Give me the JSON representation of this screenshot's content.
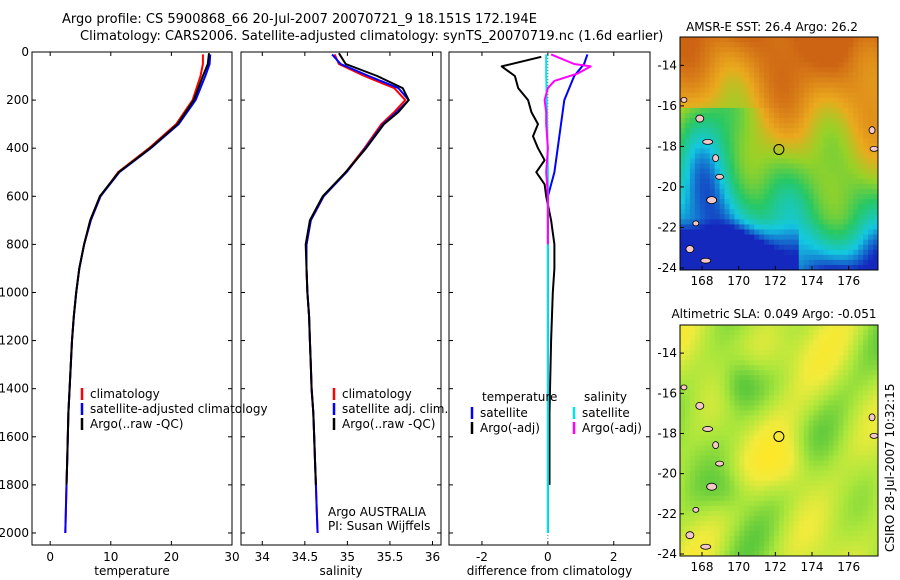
{
  "header": {
    "line1": "Argo profile: CS 5900868_66 20-Jul-2007 20070721_9 18.151S 172.194E",
    "line2": "Climatology: CARS2006. Satellite-adjusted climatology: synTS_20070719.nc (1.6d earlier)"
  },
  "side_label": "CSIRO 28-Jul-2007 10:32:15",
  "colors": {
    "climatology": "#ff0000",
    "satellite": "#0000ff",
    "argo": "#000000",
    "satellite_salinity": "#00e5e5",
    "argo_adj_salinity": "#ff00ff"
  },
  "chart_data": [
    {
      "type": "line",
      "xlabel": "temperature",
      "ylabel": "",
      "xlim": [
        -3,
        30
      ],
      "ylim": [
        2050,
        0
      ],
      "x_ticks": [
        "0",
        "10",
        "20",
        "30"
      ],
      "x_tick_values": [
        0,
        10,
        20,
        30
      ],
      "y_ticks": [
        "0",
        "200",
        "400",
        "600",
        "800",
        "1000",
        "1200",
        "1400",
        "1600",
        "1800",
        "2000"
      ],
      "y_tick_values": [
        0,
        200,
        400,
        600,
        800,
        1000,
        1200,
        1400,
        1600,
        1800,
        2000
      ],
      "legend": [
        "climatology",
        "satellite-adjusted climatology",
        "Argo(..raw -QC)"
      ],
      "legend_position": "lower-right",
      "series": [
        {
          "name": "climatology",
          "color": "#ff0000",
          "points": [
            [
              25.2,
              10
            ],
            [
              25.2,
              50
            ],
            [
              24.8,
              100
            ],
            [
              23.5,
              200
            ],
            [
              20.8,
              300
            ],
            [
              16.3,
              400
            ],
            [
              11.2,
              500
            ],
            [
              8.3,
              600
            ],
            [
              6.7,
              700
            ],
            [
              5.6,
              800
            ],
            [
              4.8,
              900
            ],
            [
              4.3,
              1000
            ],
            [
              3.9,
              1100
            ],
            [
              3.6,
              1200
            ],
            [
              3.4,
              1300
            ],
            [
              3.2,
              1400
            ],
            [
              3.0,
              1500
            ],
            [
              2.9,
              1600
            ],
            [
              2.8,
              1700
            ],
            [
              2.7,
              1800
            ],
            [
              2.6,
              1900
            ],
            [
              2.5,
              2000
            ]
          ]
        },
        {
          "name": "satellite-adjusted climatology",
          "color": "#0000ff",
          "points": [
            [
              26.4,
              10
            ],
            [
              26.3,
              50
            ],
            [
              25.6,
              100
            ],
            [
              24.0,
              200
            ],
            [
              21.2,
              300
            ],
            [
              16.6,
              400
            ],
            [
              11.4,
              500
            ],
            [
              8.3,
              600
            ],
            [
              6.7,
              700
            ],
            [
              5.6,
              800
            ],
            [
              4.8,
              900
            ],
            [
              4.3,
              1000
            ],
            [
              3.9,
              1100
            ],
            [
              3.6,
              1200
            ],
            [
              3.4,
              1300
            ],
            [
              3.2,
              1400
            ],
            [
              3.0,
              1500
            ],
            [
              2.9,
              1600
            ],
            [
              2.8,
              1700
            ],
            [
              2.7,
              1800
            ],
            [
              2.6,
              1900
            ],
            [
              2.5,
              2000
            ]
          ]
        },
        {
          "name": "Argo(..raw -QC)",
          "color": "#000000",
          "points": [
            [
              26.2,
              5
            ],
            [
              26.0,
              50
            ],
            [
              25.2,
              100
            ],
            [
              23.7,
              200
            ],
            [
              21.0,
              300
            ],
            [
              16.5,
              400
            ],
            [
              11.3,
              500
            ],
            [
              8.2,
              600
            ],
            [
              6.6,
              700
            ],
            [
              5.6,
              800
            ],
            [
              4.8,
              900
            ],
            [
              4.3,
              1000
            ],
            [
              3.9,
              1100
            ],
            [
              3.6,
              1200
            ],
            [
              3.4,
              1300
            ],
            [
              3.2,
              1400
            ],
            [
              3.0,
              1500
            ],
            [
              2.9,
              1600
            ],
            [
              2.8,
              1700
            ],
            [
              2.7,
              1800
            ]
          ]
        }
      ]
    },
    {
      "type": "line",
      "xlabel": "salinity",
      "ylabel": "",
      "xlim": [
        33.75,
        36.1
      ],
      "ylim": [
        2050,
        0
      ],
      "x_ticks": [
        "34",
        "34.5",
        "35",
        "35.5",
        "36"
      ],
      "x_tick_values": [
        34,
        34.5,
        35,
        35.5,
        36
      ],
      "legend": [
        "climatology",
        "satellite adj. clim.",
        "Argo(..raw -QC)"
      ],
      "legend_position": "lower-right",
      "annotation_lines": [
        "Argo AUSTRALIA",
        "PI: Susan Wijffels"
      ],
      "series": [
        {
          "name": "climatology",
          "color": "#ff0000",
          "points": [
            [
              34.85,
              10
            ],
            [
              34.9,
              50
            ],
            [
              35.2,
              100
            ],
            [
              35.55,
              150
            ],
            [
              35.68,
              200
            ],
            [
              35.55,
              250
            ],
            [
              35.4,
              300
            ],
            [
              35.2,
              400
            ],
            [
              34.98,
              500
            ],
            [
              34.72,
              600
            ],
            [
              34.57,
              700
            ],
            [
              34.52,
              800
            ],
            [
              34.52,
              900
            ],
            [
              34.53,
              1000
            ],
            [
              34.55,
              1100
            ],
            [
              34.56,
              1200
            ],
            [
              34.57,
              1300
            ],
            [
              34.58,
              1400
            ],
            [
              34.6,
              1500
            ],
            [
              34.61,
              1600
            ],
            [
              34.62,
              1700
            ],
            [
              34.63,
              1800
            ],
            [
              34.64,
              1900
            ],
            [
              34.65,
              2000
            ]
          ]
        },
        {
          "name": "satellite adj. clim.",
          "color": "#0000ff",
          "points": [
            [
              34.82,
              10
            ],
            [
              34.92,
              50
            ],
            [
              35.25,
              100
            ],
            [
              35.6,
              150
            ],
            [
              35.72,
              200
            ],
            [
              35.58,
              250
            ],
            [
              35.42,
              300
            ],
            [
              35.21,
              400
            ],
            [
              34.99,
              500
            ],
            [
              34.72,
              600
            ],
            [
              34.57,
              700
            ],
            [
              34.52,
              800
            ],
            [
              34.52,
              900
            ],
            [
              34.53,
              1000
            ],
            [
              34.55,
              1100
            ],
            [
              34.56,
              1200
            ],
            [
              34.57,
              1300
            ],
            [
              34.58,
              1400
            ],
            [
              34.6,
              1500
            ],
            [
              34.61,
              1600
            ],
            [
              34.62,
              1700
            ],
            [
              34.63,
              1800
            ],
            [
              34.64,
              1900
            ],
            [
              34.65,
              2000
            ]
          ]
        },
        {
          "name": "Argo(..raw -QC)",
          "color": "#000000",
          "points": [
            [
              34.9,
              5
            ],
            [
              34.98,
              50
            ],
            [
              35.35,
              100
            ],
            [
              35.65,
              150
            ],
            [
              35.72,
              200
            ],
            [
              35.6,
              250
            ],
            [
              35.43,
              300
            ],
            [
              35.22,
              400
            ],
            [
              34.98,
              500
            ],
            [
              34.71,
              600
            ],
            [
              34.56,
              700
            ],
            [
              34.51,
              800
            ],
            [
              34.52,
              900
            ],
            [
              34.53,
              1000
            ],
            [
              34.55,
              1100
            ],
            [
              34.56,
              1200
            ],
            [
              34.57,
              1300
            ],
            [
              34.58,
              1400
            ],
            [
              34.6,
              1500
            ],
            [
              34.61,
              1600
            ],
            [
              34.62,
              1700
            ],
            [
              34.63,
              1800
            ]
          ]
        }
      ]
    },
    {
      "type": "line",
      "xlabel": "difference from climatology",
      "ylabel": "",
      "xlim": [
        -3,
        3.1
      ],
      "ylim": [
        2050,
        0
      ],
      "x_ticks": [
        "-2",
        "0",
        "2"
      ],
      "x_tick_values": [
        -2,
        0,
        2
      ],
      "legend": [
        "temperature",
        "satellite",
        "Argo(-adj)",
        "salinity",
        "satellite",
        "Argo(-adj)"
      ],
      "legend_position": "lower-center",
      "series": [
        {
          "name": "satellite",
          "color": "#0000ff",
          "points": [
            [
              1.2,
              10
            ],
            [
              1.1,
              50
            ],
            [
              0.8,
              100
            ],
            [
              0.5,
              200
            ],
            [
              0.4,
              300
            ],
            [
              0.3,
              400
            ],
            [
              0.2,
              500
            ],
            [
              0.0,
              600
            ],
            [
              0.0,
              800
            ],
            [
              0.0,
              1000
            ],
            [
              0.0,
              1200
            ],
            [
              0.0,
              1400
            ],
            [
              0.0,
              1600
            ],
            [
              0.0,
              1800
            ],
            [
              0.0,
              2000
            ]
          ]
        },
        {
          "name": "Argo(-adj)",
          "color": "#000000",
          "points": [
            [
              -0.2,
              20
            ],
            [
              -1.4,
              60
            ],
            [
              -1.0,
              100
            ],
            [
              -0.9,
              150
            ],
            [
              -0.6,
              200
            ],
            [
              -0.5,
              250
            ],
            [
              -0.3,
              300
            ],
            [
              -0.45,
              350
            ],
            [
              -0.3,
              400
            ],
            [
              -0.1,
              450
            ],
            [
              -0.35,
              500
            ],
            [
              -0.1,
              550
            ],
            [
              -0.05,
              600
            ],
            [
              0.1,
              700
            ],
            [
              0.2,
              800
            ],
            [
              0.2,
              900
            ],
            [
              0.15,
              1000
            ],
            [
              0.1,
              1200
            ],
            [
              0.05,
              1500
            ],
            [
              0.05,
              1800
            ]
          ]
        },
        {
          "name": "satellite",
          "color": "#00e5e5",
          "points": [
            [
              -0.05,
              10
            ],
            [
              -0.05,
              100
            ],
            [
              -0.02,
              300
            ],
            [
              0.0,
              500
            ],
            [
              0.0,
              800
            ],
            [
              0.0,
              1000
            ],
            [
              0.0,
              1200
            ],
            [
              0.0,
              1400
            ],
            [
              0.0,
              1600
            ],
            [
              0.0,
              1800
            ],
            [
              0.0,
              2000
            ]
          ]
        },
        {
          "name": "Argo(-adj)",
          "color": "#ff00ff",
          "points": [
            [
              0.1,
              10
            ],
            [
              0.8,
              50
            ],
            [
              1.3,
              60
            ],
            [
              0.9,
              90
            ],
            [
              0.2,
              120
            ],
            [
              0.0,
              150
            ],
            [
              -0.1,
              200
            ],
            [
              -0.05,
              250
            ],
            [
              -0.05,
              300
            ],
            [
              0.0,
              400
            ],
            [
              -0.05,
              500
            ],
            [
              0.0,
              600
            ],
            [
              0.0,
              800
            ]
          ]
        }
      ]
    }
  ],
  "maps": [
    {
      "title": "AMSR-E SST: 26.4 Argo: 26.2",
      "lon_ticks": [
        "168",
        "170",
        "172",
        "174",
        "176"
      ],
      "lat_ticks": [
        "-14",
        "-16",
        "-18",
        "-20",
        "-22",
        "-24"
      ],
      "lon_range": [
        166.8,
        177.6
      ],
      "lat_range": [
        -24.1,
        -12.6
      ],
      "marker": {
        "lon": 172.194,
        "lat": -18.151
      }
    },
    {
      "title": "Altimetric SLA: 0.049 Argo: -0.051",
      "lon_ticks": [
        "168",
        "170",
        "172",
        "174",
        "176"
      ],
      "lat_ticks": [
        "-14",
        "-16",
        "-18",
        "-20",
        "-22",
        "-24"
      ],
      "lon_range": [
        166.8,
        177.6
      ],
      "lat_range": [
        -24.1,
        -12.6
      ],
      "marker": {
        "lon": 172.194,
        "lat": -18.151
      }
    }
  ]
}
